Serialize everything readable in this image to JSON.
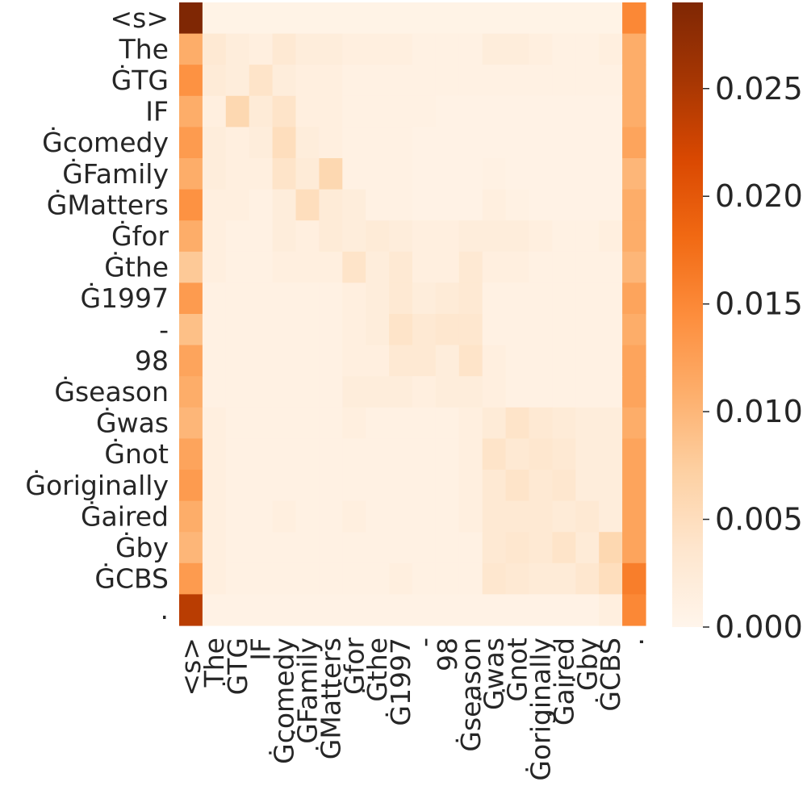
{
  "chart_data": {
    "type": "heatmap",
    "title": "",
    "xlabel": "",
    "ylabel": "",
    "x_tokens": [
      "<s>",
      "The",
      "ĠTG",
      "IF",
      "Ġcomedy",
      "ĠFamily",
      "ĠMatters",
      "Ġfor",
      "Ġthe",
      "Ġ1997",
      "-",
      "98",
      "Ġseason",
      "Ġwas",
      "Ġnot",
      "Ġoriginally",
      "Ġaired",
      "Ġby",
      "ĠCBS",
      "."
    ],
    "y_tokens": [
      "<s>",
      "The",
      "ĠTG",
      "IF",
      "Ġcomedy",
      "ĠFamily",
      "ĠMatters",
      "Ġfor",
      "Ġthe",
      "Ġ1997",
      "-",
      "98",
      "Ġseason",
      "Ġwas",
      "Ġnot",
      "Ġoriginally",
      "Ġaired",
      "Ġby",
      "ĠCBS",
      "."
    ],
    "values": [
      [
        0.029,
        0.0006,
        0.0006,
        0.0006,
        0.0006,
        0.0006,
        0.0006,
        0.0006,
        0.0006,
        0.0006,
        0.0006,
        0.0006,
        0.0006,
        0.0006,
        0.0006,
        0.0006,
        0.0006,
        0.0006,
        0.0006,
        0.015
      ],
      [
        0.011,
        0.003,
        0.002,
        0.0015,
        0.003,
        0.002,
        0.002,
        0.0015,
        0.0015,
        0.0015,
        0.001,
        0.001,
        0.001,
        0.002,
        0.002,
        0.0015,
        0.001,
        0.001,
        0.0015,
        0.011
      ],
      [
        0.014,
        0.0025,
        0.002,
        0.004,
        0.002,
        0.0015,
        0.0015,
        0.001,
        0.001,
        0.001,
        0.001,
        0.001,
        0.001,
        0.001,
        0.001,
        0.001,
        0.001,
        0.001,
        0.001,
        0.011
      ],
      [
        0.011,
        0.0015,
        0.006,
        0.0025,
        0.004,
        0.0015,
        0.0015,
        0.001,
        0.001,
        0.001,
        0.001,
        0.0008,
        0.0008,
        0.0008,
        0.0008,
        0.0008,
        0.0008,
        0.0008,
        0.0008,
        0.011
      ],
      [
        0.013,
        0.002,
        0.0015,
        0.002,
        0.005,
        0.002,
        0.0015,
        0.001,
        0.001,
        0.001,
        0.0008,
        0.0008,
        0.0008,
        0.0008,
        0.0008,
        0.0008,
        0.0008,
        0.0008,
        0.0008,
        0.012
      ],
      [
        0.011,
        0.002,
        0.0015,
        0.0015,
        0.004,
        0.0025,
        0.006,
        0.001,
        0.001,
        0.001,
        0.0008,
        0.0008,
        0.0008,
        0.001,
        0.0008,
        0.0008,
        0.0008,
        0.0008,
        0.0008,
        0.01
      ],
      [
        0.014,
        0.0015,
        0.0015,
        0.001,
        0.002,
        0.005,
        0.0025,
        0.002,
        0.001,
        0.001,
        0.0008,
        0.0008,
        0.0008,
        0.0015,
        0.001,
        0.0008,
        0.0008,
        0.0008,
        0.0008,
        0.011
      ],
      [
        0.011,
        0.0015,
        0.001,
        0.001,
        0.002,
        0.0015,
        0.0025,
        0.002,
        0.0025,
        0.002,
        0.0015,
        0.0015,
        0.002,
        0.002,
        0.002,
        0.0015,
        0.001,
        0.001,
        0.0015,
        0.011
      ],
      [
        0.008,
        0.0015,
        0.001,
        0.001,
        0.0015,
        0.0015,
        0.0015,
        0.004,
        0.002,
        0.003,
        0.0015,
        0.0015,
        0.003,
        0.0015,
        0.0015,
        0.001,
        0.001,
        0.001,
        0.001,
        0.01
      ],
      [
        0.013,
        0.001,
        0.001,
        0.001,
        0.001,
        0.001,
        0.001,
        0.0015,
        0.002,
        0.003,
        0.002,
        0.0025,
        0.003,
        0.001,
        0.001,
        0.001,
        0.001,
        0.001,
        0.001,
        0.012
      ],
      [
        0.009,
        0.001,
        0.001,
        0.001,
        0.001,
        0.001,
        0.001,
        0.0015,
        0.002,
        0.004,
        0.003,
        0.0035,
        0.0035,
        0.001,
        0.001,
        0.001,
        0.001,
        0.001,
        0.001,
        0.011
      ],
      [
        0.012,
        0.001,
        0.001,
        0.001,
        0.001,
        0.001,
        0.001,
        0.0015,
        0.0015,
        0.003,
        0.003,
        0.002,
        0.004,
        0.0015,
        0.001,
        0.001,
        0.001,
        0.001,
        0.001,
        0.012
      ],
      [
        0.011,
        0.001,
        0.001,
        0.001,
        0.001,
        0.001,
        0.001,
        0.002,
        0.002,
        0.002,
        0.0015,
        0.002,
        0.002,
        0.0015,
        0.001,
        0.001,
        0.001,
        0.001,
        0.001,
        0.012
      ],
      [
        0.01,
        0.0015,
        0.001,
        0.001,
        0.001,
        0.001,
        0.001,
        0.0015,
        0.001,
        0.001,
        0.001,
        0.001,
        0.0015,
        0.0025,
        0.004,
        0.003,
        0.0025,
        0.002,
        0.002,
        0.011
      ],
      [
        0.012,
        0.0015,
        0.001,
        0.001,
        0.001,
        0.001,
        0.001,
        0.001,
        0.001,
        0.001,
        0.001,
        0.001,
        0.0015,
        0.004,
        0.003,
        0.0035,
        0.003,
        0.002,
        0.002,
        0.012
      ],
      [
        0.013,
        0.0015,
        0.001,
        0.001,
        0.001,
        0.001,
        0.001,
        0.001,
        0.001,
        0.001,
        0.001,
        0.001,
        0.0015,
        0.003,
        0.004,
        0.003,
        0.0035,
        0.002,
        0.002,
        0.012
      ],
      [
        0.011,
        0.0015,
        0.001,
        0.001,
        0.0015,
        0.001,
        0.001,
        0.0015,
        0.001,
        0.001,
        0.001,
        0.001,
        0.0015,
        0.003,
        0.003,
        0.003,
        0.0025,
        0.003,
        0.002,
        0.012
      ],
      [
        0.01,
        0.0015,
        0.001,
        0.001,
        0.001,
        0.001,
        0.001,
        0.001,
        0.001,
        0.001,
        0.001,
        0.001,
        0.001,
        0.003,
        0.0035,
        0.003,
        0.004,
        0.0025,
        0.006,
        0.012
      ],
      [
        0.013,
        0.0015,
        0.001,
        0.001,
        0.001,
        0.001,
        0.001,
        0.001,
        0.001,
        0.0015,
        0.001,
        0.001,
        0.001,
        0.0035,
        0.003,
        0.0025,
        0.0025,
        0.0035,
        0.005,
        0.016
      ],
      [
        0.024,
        0.0008,
        0.0008,
        0.0008,
        0.0008,
        0.0008,
        0.0008,
        0.0008,
        0.0008,
        0.0008,
        0.0008,
        0.0008,
        0.0008,
        0.0008,
        0.0008,
        0.0008,
        0.0008,
        0.0008,
        0.0015,
        0.015
      ]
    ],
    "value_range": [
      0.0,
      0.029
    ],
    "colormap": "Oranges",
    "color_stops": [
      "#fff5eb",
      "#fee6ce",
      "#fdd0a2",
      "#fdae6b",
      "#fd8d3c",
      "#f16913",
      "#d94801",
      "#a63603",
      "#7f2704"
    ],
    "colorbar": {
      "ticks": [
        0.0,
        0.005,
        0.01,
        0.015,
        0.02,
        0.025
      ],
      "tick_labels": [
        "0.000",
        "0.005",
        "0.010",
        "0.015",
        "0.020",
        "0.025"
      ]
    }
  }
}
